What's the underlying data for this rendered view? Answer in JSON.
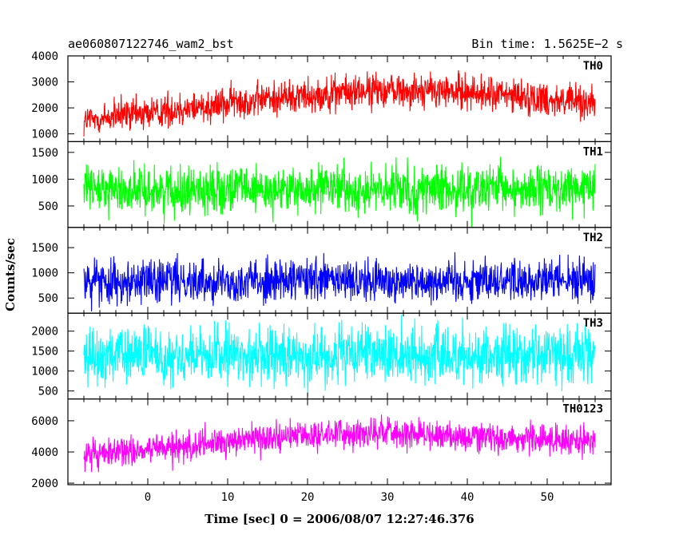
{
  "chart_data": {
    "type": "line",
    "title": "ae060807122746_wam2_bst",
    "bin_time": "Bin time: 1.5625E−2 s",
    "xlabel": "Time [sec] 0 = 2006/08/07 12:27:46.376",
    "ylabel": "Counts/sec",
    "xlim": [
      -10,
      58
    ],
    "data_x_range": [
      -8,
      56
    ],
    "x_ticks": [
      0,
      10,
      20,
      30,
      40,
      50
    ],
    "grid": false,
    "panels": [
      {
        "name": "TH0",
        "color": "#ff0000",
        "ylim": [
          700,
          4000
        ],
        "y_ticks": [
          1000,
          2000,
          3000,
          4000
        ],
        "trend": [
          [
            -8,
            1500
          ],
          [
            0,
            1800
          ],
          [
            10,
            2200
          ],
          [
            20,
            2500
          ],
          [
            30,
            2700
          ],
          [
            40,
            2600
          ],
          [
            56,
            2200
          ]
        ],
        "spread": 700
      },
      {
        "name": "TH1",
        "color": "#00ff00",
        "ylim": [
          100,
          1700
        ],
        "y_ticks": [
          500,
          1000,
          1500
        ],
        "trend": [
          [
            -8,
            800
          ],
          [
            56,
            800
          ]
        ],
        "spread": 450
      },
      {
        "name": "TH2",
        "color": "#0000ff",
        "ylim": [
          200,
          1900
        ],
        "y_ticks": [
          500,
          1000,
          1500
        ],
        "trend": [
          [
            -8,
            850
          ],
          [
            56,
            850
          ]
        ],
        "spread": 450
      },
      {
        "name": "TH3",
        "color": "#00ffff",
        "ylim": [
          300,
          2450
        ],
        "y_ticks": [
          500,
          1000,
          1500,
          2000
        ],
        "trend": [
          [
            -8,
            1400
          ],
          [
            56,
            1400
          ]
        ],
        "spread": 750
      },
      {
        "name": "TH0123",
        "color": "#ff00ff",
        "ylim": [
          1900,
          7400
        ],
        "y_ticks": [
          2000,
          4000,
          6000
        ],
        "trend": [
          [
            -8,
            3800
          ],
          [
            0,
            4100
          ],
          [
            10,
            4700
          ],
          [
            20,
            5100
          ],
          [
            30,
            5300
          ],
          [
            40,
            5000
          ],
          [
            56,
            4700
          ]
        ],
        "spread": 1000
      }
    ]
  }
}
